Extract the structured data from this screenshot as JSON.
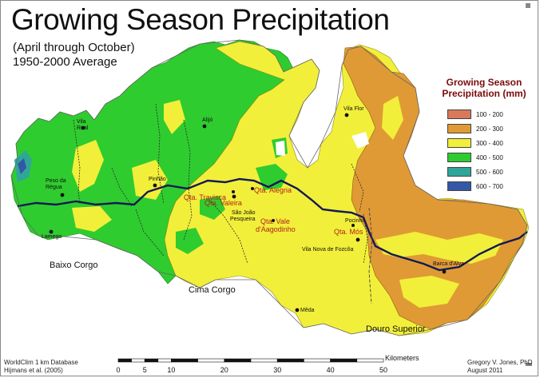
{
  "title": "Growing Season Precipitation",
  "subtitle_lines": [
    "(April through October)",
    "1950-2000 Average"
  ],
  "legend": {
    "title_lines": [
      "Growing Season",
      "Precipitation (mm)"
    ],
    "items": [
      {
        "label": "100 - 200",
        "color": "#d9785a"
      },
      {
        "label": "200 - 300",
        "color": "#e09a35"
      },
      {
        "label": "300 - 400",
        "color": "#f2ef3a"
      },
      {
        "label": "400 - 500",
        "color": "#2fcc2f"
      },
      {
        "label": "500 - 600",
        "color": "#2ea79a"
      },
      {
        "label": "600 - 700",
        "color": "#3457a6"
      }
    ]
  },
  "places": [
    {
      "name": "Vila Real",
      "lines": [
        "Vila",
        "Real"
      ]
    },
    {
      "name": "Alijó",
      "lines": [
        "Alijó"
      ]
    },
    {
      "name": "Vila Flor",
      "lines": [
        "Vila Flor"
      ]
    },
    {
      "name": "Peso da Régua",
      "lines": [
        "Peso da",
        "Régua"
      ]
    },
    {
      "name": "Pinhão",
      "lines": [
        "Pinhão"
      ]
    },
    {
      "name": "São João Pesqueira",
      "lines": [
        "São João",
        "Pesqueira"
      ]
    },
    {
      "name": "Lamego",
      "lines": [
        "Lamego"
      ]
    },
    {
      "name": "Pocinho",
      "lines": [
        "Pocinho"
      ]
    },
    {
      "name": "Vila Nova de Fozcôa",
      "lines": [
        "Vila Nova de Fozcôa"
      ]
    },
    {
      "name": "Barca d'Alva",
      "lines": [
        "Barca d'Alva"
      ]
    },
    {
      "name": "Mêda",
      "lines": [
        "Mêda"
      ]
    }
  ],
  "estates": [
    "Qta. Alegria",
    "Qta. Travisca",
    "Qta. Valeira",
    "Qta. Vale d'Aagodinho",
    "Qta. Mós"
  ],
  "estate_lines": {
    "Qta. Vale d'Aagodinho": [
      "Qta. Vale",
      "d'Aagodinho"
    ]
  },
  "regions": [
    "Baixo Corgo",
    "Cima Corgo",
    "Douro Superior"
  ],
  "scale": {
    "unit_label": "Kilometers",
    "ticks": [
      "0",
      "5",
      "10",
      "20",
      "30",
      "40",
      "50"
    ],
    "tick_values": [
      0,
      5,
      10,
      20,
      30,
      40,
      50
    ]
  },
  "credits": {
    "left": [
      "WorldClim 1 km Database",
      "Hijmans et al. (2005)"
    ],
    "right": [
      "Gregory V. Jones, PhD",
      "August 2011"
    ]
  }
}
